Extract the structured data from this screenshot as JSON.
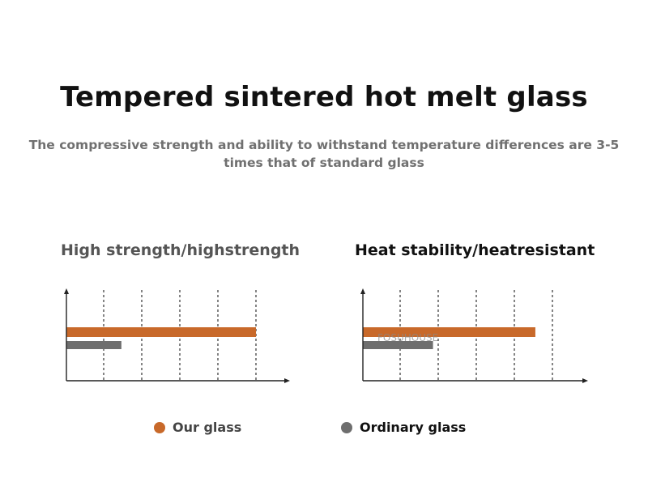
{
  "title": "Tempered sintered hot melt glass",
  "subtitle": "The compressive strength and ability to withstand temperature differences are 3-5 times that of standard glass",
  "colors": {
    "our_glass": "#c8692a",
    "ordinary_glass": "#6e6e6e",
    "axis": "#222222"
  },
  "watermark": "FOSUHOUSE",
  "legend": [
    {
      "label": "Our glass",
      "color": "#c8692a"
    },
    {
      "label": "Ordinary glass",
      "color": "#6e6e6e"
    }
  ],
  "chart_data": [
    {
      "type": "bar",
      "orientation": "horizontal",
      "title": "High strength/highstrength",
      "xlim": [
        0,
        5
      ],
      "grid": "vertical-dashed",
      "series": [
        {
          "name": "Our glass",
          "values": [
            5.0
          ]
        },
        {
          "name": "Ordinary glass",
          "values": [
            1.45
          ]
        }
      ]
    },
    {
      "type": "bar",
      "orientation": "horizontal",
      "title": "Heat stability/heatresistant",
      "xlim": [
        0,
        5
      ],
      "grid": "vertical-dashed",
      "series": [
        {
          "name": "Our glass",
          "values": [
            4.55
          ]
        },
        {
          "name": "Ordinary glass",
          "values": [
            1.85
          ]
        }
      ]
    }
  ]
}
